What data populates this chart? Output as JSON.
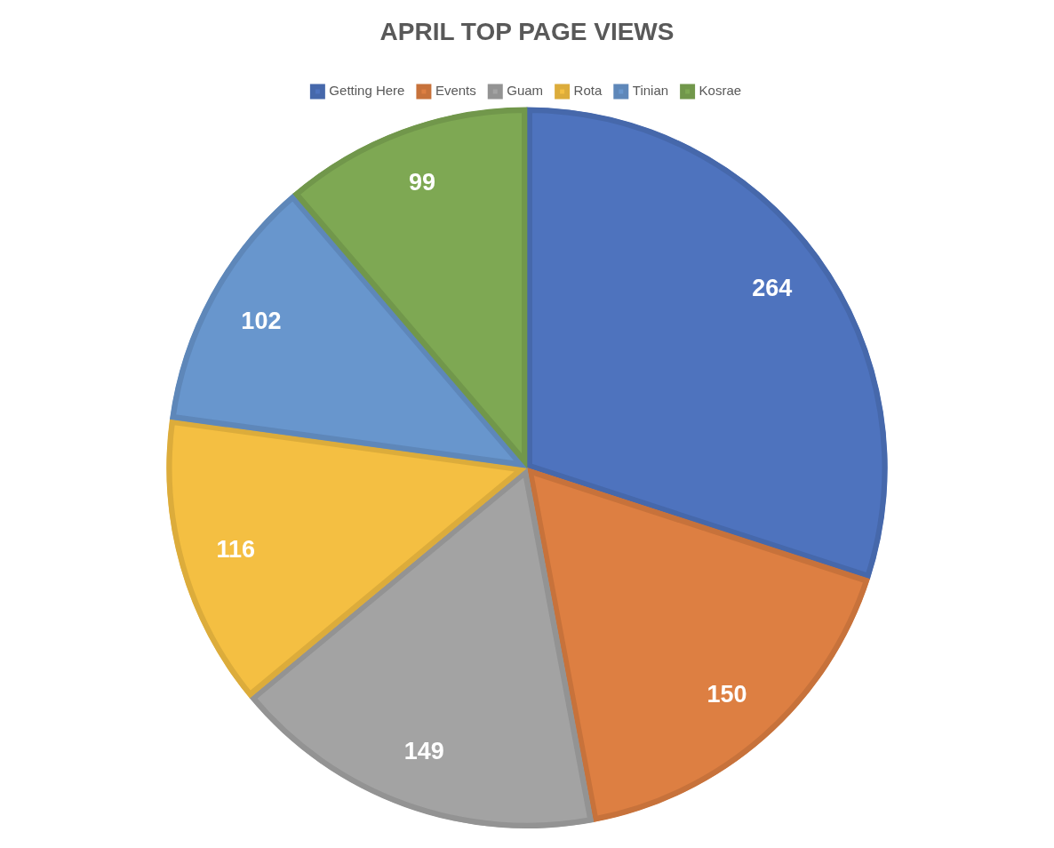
{
  "chart_data": {
    "type": "pie",
    "title": "APRIL TOP PAGE VIEWS",
    "categories": [
      "Getting Here",
      "Events",
      "Guam",
      "Rota",
      "Tinian",
      "Kosrae"
    ],
    "values": [
      264,
      150,
      149,
      116,
      102,
      99
    ],
    "colors": [
      "#4e73be",
      "#dd7f42",
      "#a3a3a3",
      "#f4bf42",
      "#6896cd",
      "#7ea853"
    ],
    "legend": "top",
    "data_labels": true
  }
}
